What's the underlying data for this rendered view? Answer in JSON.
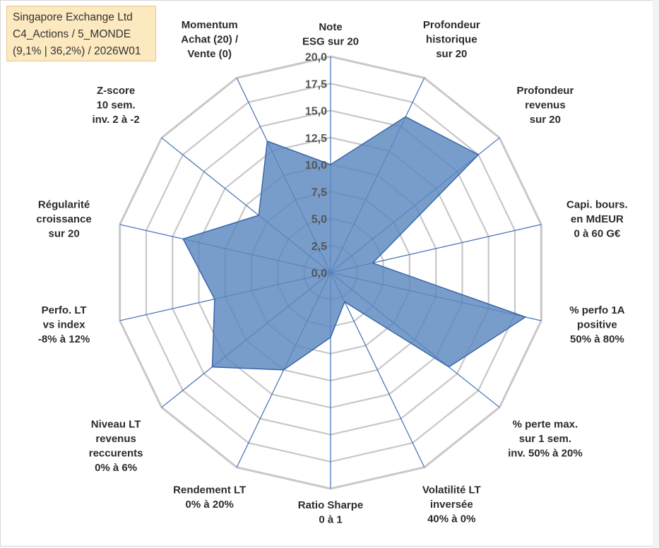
{
  "info_box": {
    "line1": "Singapore Exchange Ltd",
    "line2": "C4_Actions / 5_MONDE",
    "line3": "(9,1% | 36,2%) / 2026W01"
  },
  "colors": {
    "grid": "#c8c8c8",
    "spoke": "#3f6fb5",
    "fill": "#5b88bf",
    "stroke": "#3a66a8",
    "label": "#2b2b2b",
    "tick": "#555555"
  },
  "chart_data": {
    "type": "radar",
    "scale": {
      "min": 0,
      "max": 20,
      "step": 2.5
    },
    "tick_labels": [
      "0,0",
      "2,5",
      "5,0",
      "7,5",
      "10,0",
      "12,5",
      "15,0",
      "17,5",
      "20,0"
    ],
    "axes": [
      {
        "label": [
          "Note",
          "ESG sur 20"
        ],
        "value": 10
      },
      {
        "label": [
          "Profondeur",
          "historique",
          "sur 20"
        ],
        "value": 16
      },
      {
        "label": [
          "Profondeur",
          "revenus",
          "sur 20"
        ],
        "value": 17.5
      },
      {
        "label": [
          "Capi. bours.",
          "en MdEUR",
          "0 à 60 G€"
        ],
        "value": 4
      },
      {
        "label": [
          "% perfo 1A",
          "positive",
          "50% à 80%"
        ],
        "value": 18.5
      },
      {
        "label": [
          "% perte max.",
          "sur 1 sem.",
          "inv. 50% à 20%"
        ],
        "value": 14
      },
      {
        "label": [
          "Volatilité LT",
          "inversée",
          "40% à 0%"
        ],
        "value": 3
      },
      {
        "label": [
          "Ratio Sharpe",
          "0 à 1"
        ],
        "value": 6
      },
      {
        "label": [
          "Rendement LT",
          "0% à 20%"
        ],
        "value": 10
      },
      {
        "label": [
          "Niveau LT",
          "revenus",
          "reccurents",
          "0% à 6%"
        ],
        "value": 14
      },
      {
        "label": [
          "Perfo. LT",
          "vs index",
          "-8% à 12%"
        ],
        "value": 11
      },
      {
        "label": [
          "Régularité",
          "croissance",
          "sur 20"
        ],
        "value": 14
      },
      {
        "label": [
          "Z-score",
          "10 sem.",
          "inv. 2 à -2"
        ],
        "value": 8.5
      },
      {
        "label": [
          "Momentum",
          "Achat (20) /",
          "Vente (0)"
        ],
        "value": 13.5
      }
    ],
    "series": [
      {
        "name": "Singapore Exchange Ltd"
      }
    ]
  }
}
